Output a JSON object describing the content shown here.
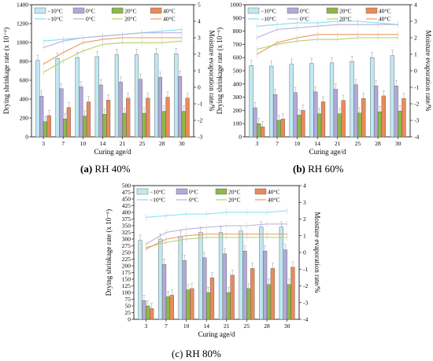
{
  "colors": {
    "bar_m10": "#bfe9f2",
    "bar_0": "#b2a9d8",
    "bar_20": "#8db84a",
    "bar_40": "#ea8a5a",
    "line_m10": "#7fe0ec",
    "line_0": "#b9b0de",
    "line_20": "#b5d16a",
    "line_40": "#e89a5c",
    "bar_stroke": "#555555",
    "err": "#aaaaaa"
  },
  "chart_data": [
    {
      "type": "bar+line",
      "caption_label": "(a)",
      "caption_text": " RH 40%",
      "xlabel": "Curing age/d",
      "ylabel": "Drying shrinkage rate (x 10⁻⁶)",
      "y2label": "Moisture evaporation rate/%",
      "categories": [
        "3",
        "7",
        "10",
        "14",
        "21",
        "25",
        "28",
        "30"
      ],
      "ylim": [
        0,
        1400
      ],
      "yticks": [
        0,
        200,
        400,
        600,
        800,
        1000,
        1200,
        1400
      ],
      "y2lim": [
        -3,
        5
      ],
      "y2ticks": [
        -3,
        -2,
        -1,
        0,
        1,
        2,
        3,
        4,
        5
      ],
      "bar_series": [
        {
          "name": "−10°C",
          "values": [
            810,
            830,
            840,
            850,
            870,
            870,
            880,
            880
          ]
        },
        {
          "name": "0°C",
          "values": [
            430,
            510,
            530,
            550,
            580,
            610,
            630,
            640
          ]
        },
        {
          "name": "20°C",
          "values": [
            160,
            190,
            220,
            240,
            250,
            250,
            270,
            270
          ]
        },
        {
          "name": "40°C",
          "values": [
            225,
            310,
            370,
            390,
            410,
            410,
            420,
            410
          ]
        }
      ],
      "line_series": [
        {
          "name": "−10°C",
          "values": [
            2.8,
            2.9,
            3.0,
            3.1,
            3.2,
            3.3,
            3.4,
            3.5
          ]
        },
        {
          "name": "0°C",
          "values": [
            2.4,
            2.8,
            3.0,
            3.1,
            3.2,
            3.3,
            3.3,
            3.3
          ]
        },
        {
          "name": "20°C",
          "values": [
            0.9,
            1.6,
            2.2,
            2.6,
            2.7,
            2.7,
            2.7,
            2.8
          ]
        },
        {
          "name": "40°C",
          "values": [
            1.4,
            2.1,
            2.7,
            2.9,
            3.0,
            3.0,
            3.0,
            3.0
          ]
        }
      ]
    },
    {
      "type": "bar+line",
      "caption_label": "(b)",
      "caption_text": " RH 60%",
      "xlabel": "Curing age/d",
      "ylabel": "Drying shrinkage rate (x 10⁻⁶)",
      "y2label": "Moisture evaporation rate/%",
      "categories": [
        "3",
        "7",
        "10",
        "14",
        "21",
        "25",
        "28",
        "30"
      ],
      "ylim": [
        0,
        1000
      ],
      "yticks": [
        0,
        100,
        200,
        300,
        400,
        500,
        600,
        700,
        800,
        900,
        1000
      ],
      "y2lim": [
        -4,
        4
      ],
      "y2ticks": [
        -4,
        -3,
        -2,
        -1,
        0,
        1,
        2,
        3,
        4
      ],
      "bar_series": [
        {
          "name": "−10°C",
          "values": [
            540,
            535,
            550,
            555,
            560,
            570,
            600,
            615
          ]
        },
        {
          "name": "0°C",
          "values": [
            220,
            320,
            335,
            340,
            360,
            395,
            385,
            385
          ]
        },
        {
          "name": "20°C",
          "values": [
            100,
            125,
            165,
            175,
            175,
            180,
            190,
            195
          ]
        },
        {
          "name": "40°C",
          "values": [
            75,
            135,
            200,
            265,
            275,
            290,
            310,
            290
          ]
        }
      ],
      "line_series": [
        {
          "name": "−10°C",
          "values": [
            2.7,
            2.8,
            2.9,
            2.9,
            3.0,
            3.0,
            2.9,
            2.8
          ]
        },
        {
          "name": "0°C",
          "values": [
            2.0,
            2.5,
            2.6,
            2.7,
            2.8,
            2.8,
            2.8,
            2.8
          ]
        },
        {
          "name": "20°C",
          "values": [
            1.3,
            1.6,
            1.8,
            1.9,
            1.9,
            2.0,
            2.0,
            2.0
          ]
        },
        {
          "name": "40°C",
          "values": [
            1.0,
            1.7,
            2.0,
            2.2,
            2.2,
            2.2,
            2.2,
            2.2
          ]
        }
      ]
    },
    {
      "type": "bar+line",
      "caption_label": "",
      "caption_text": "(c) RH 80%",
      "xlabel": "Curing age/d",
      "ylabel": "Drying shrinkage rate (x 10⁻⁶)",
      "y2label": "Moisture evaporation rate/%",
      "categories": [
        "3",
        "7",
        "10",
        "14",
        "21",
        "25",
        "28",
        "30"
      ],
      "ylim": [
        0,
        500
      ],
      "yticks": [
        0,
        25,
        50,
        75,
        100,
        125,
        150,
        175,
        200,
        225,
        250,
        275,
        300,
        325,
        350,
        375,
        400,
        425,
        450,
        475,
        500
      ],
      "y2lim": [
        -4,
        4
      ],
      "y2ticks": [
        -4,
        -3,
        -2,
        -1,
        0,
        1,
        2,
        3,
        4
      ],
      "bar_series": [
        {
          "name": "−10°C",
          "values": [
            295,
            300,
            310,
            325,
            325,
            330,
            345,
            345
          ]
        },
        {
          "name": "0°C",
          "values": [
            70,
            205,
            220,
            230,
            245,
            255,
            255,
            260
          ]
        },
        {
          "name": "20°C",
          "values": [
            50,
            85,
            110,
            100,
            100,
            115,
            130,
            130
          ]
        },
        {
          "name": "40°C",
          "values": [
            40,
            90,
            115,
            155,
            165,
            190,
            190,
            195
          ]
        }
      ],
      "line_series": [
        {
          "name": "−10°C",
          "values": [
            2.1,
            2.2,
            2.3,
            2.3,
            2.4,
            2.4,
            2.4,
            2.5
          ]
        },
        {
          "name": "0°C",
          "values": [
            0.5,
            1.2,
            1.4,
            1.5,
            1.6,
            1.6,
            1.7,
            1.7
          ]
        },
        {
          "name": "20°C",
          "values": [
            0.3,
            0.6,
            0.8,
            0.9,
            0.9,
            0.9,
            0.9,
            0.9
          ]
        },
        {
          "name": "40°C",
          "values": [
            0.2,
            0.8,
            1.0,
            1.1,
            1.1,
            1.1,
            1.1,
            1.1
          ]
        }
      ]
    }
  ]
}
